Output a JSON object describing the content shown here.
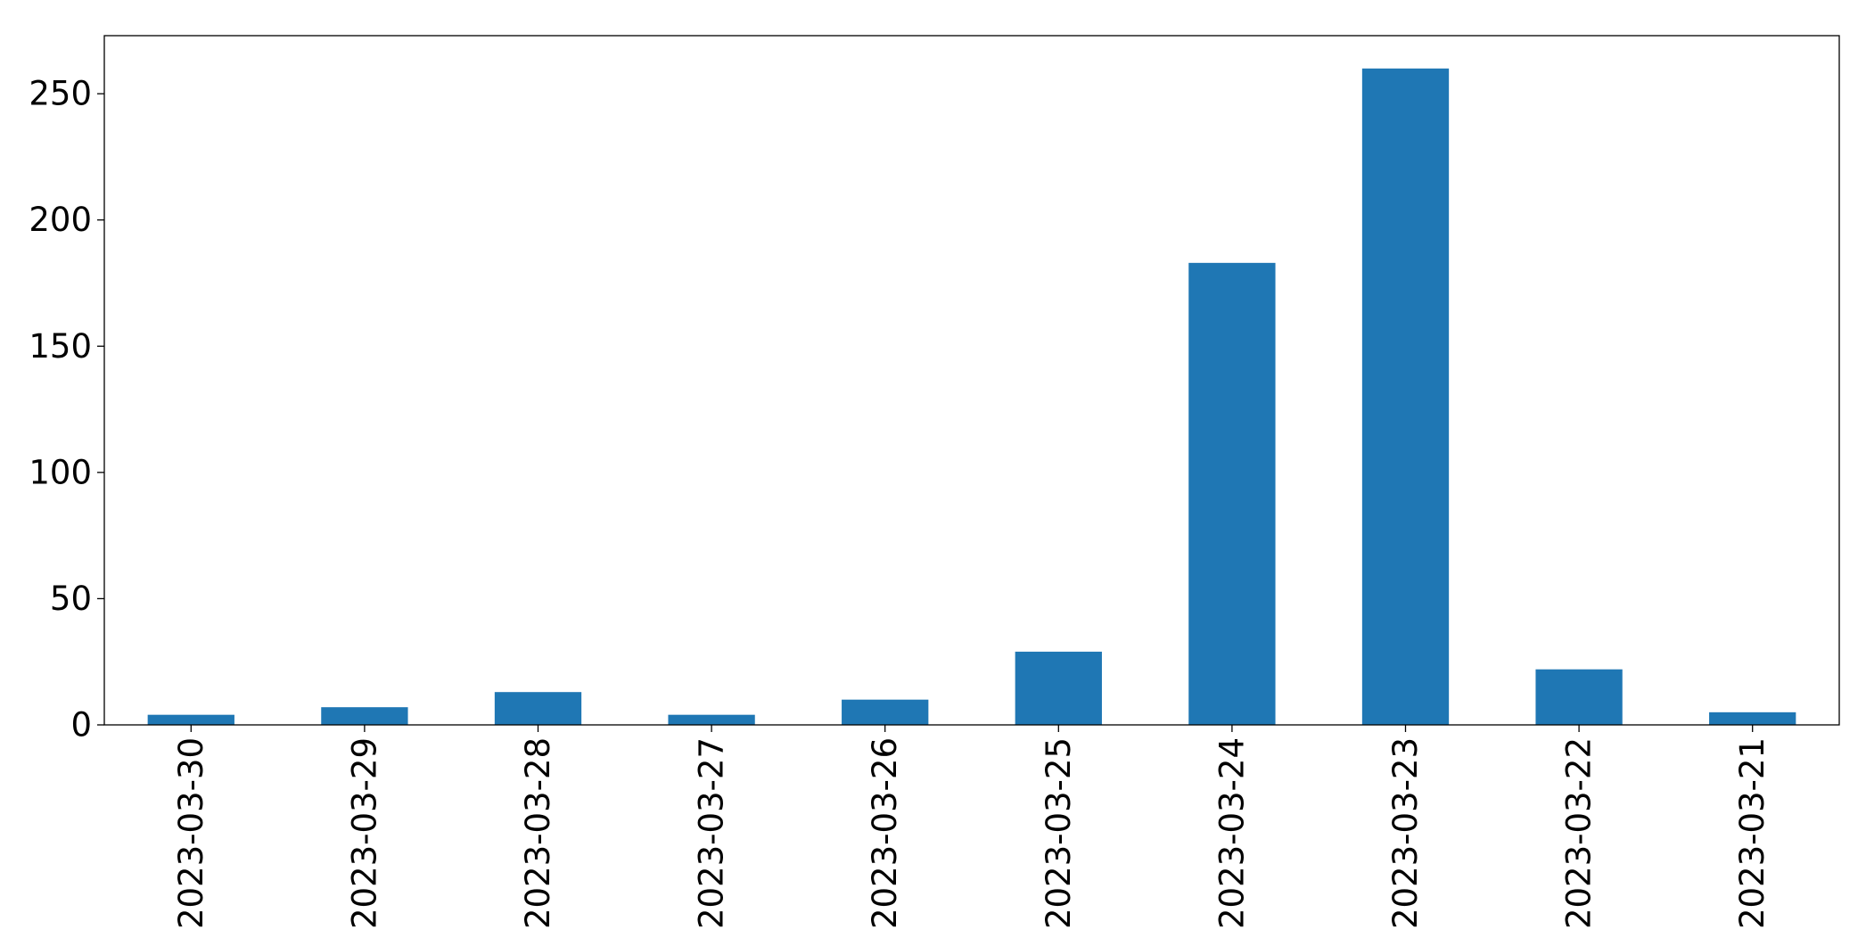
{
  "chart_data": {
    "type": "bar",
    "title": "",
    "xlabel": "",
    "ylabel": "",
    "categories": [
      "2023-03-30",
      "2023-03-29",
      "2023-03-28",
      "2023-03-27",
      "2023-03-26",
      "2023-03-25",
      "2023-03-24",
      "2023-03-23",
      "2023-03-22",
      "2023-03-21"
    ],
    "values": [
      4,
      7,
      13,
      4,
      10,
      29,
      183,
      260,
      22,
      5
    ],
    "ylim": [
      0,
      273
    ],
    "yticks": [
      0,
      50,
      100,
      150,
      200,
      250
    ],
    "bar_color": "#1f77b4",
    "grid": false,
    "legend": "none"
  }
}
